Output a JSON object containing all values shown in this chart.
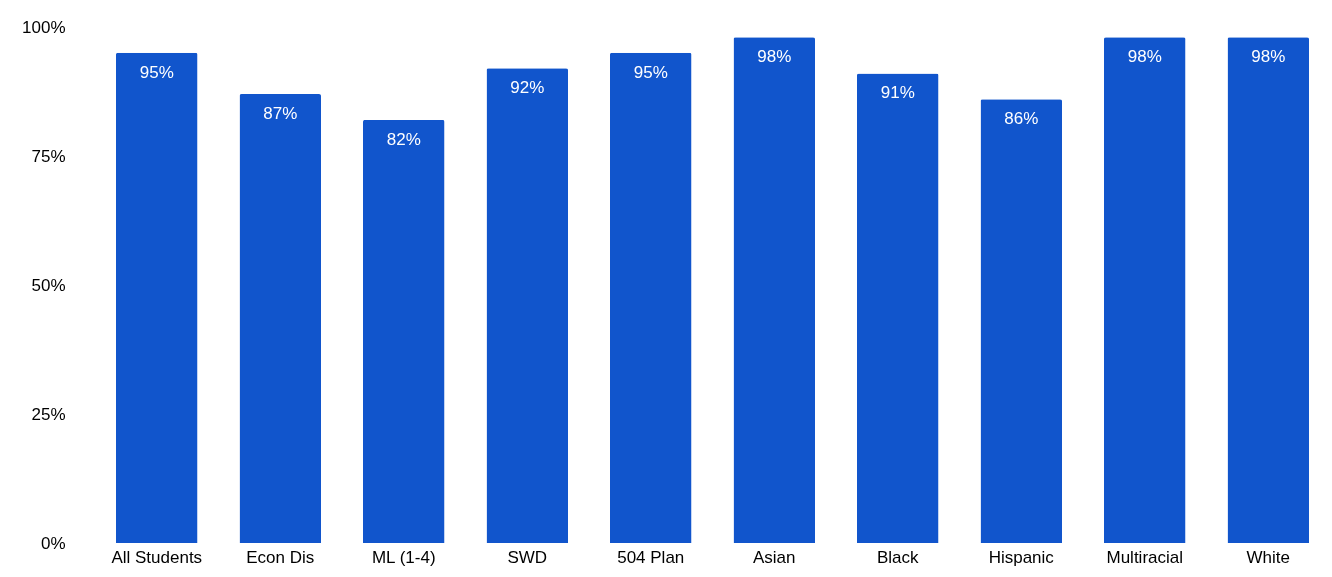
{
  "chart_data": {
    "type": "bar",
    "categories": [
      "All Students",
      "Econ Dis",
      "ML (1-4)",
      "SWD",
      "504 Plan",
      "Asian",
      "Black",
      "Hispanic",
      "Multiracial",
      "White"
    ],
    "values": [
      95,
      87,
      82,
      92,
      95,
      98,
      91,
      86,
      98,
      98
    ],
    "value_labels": [
      "95%",
      "87%",
      "82%",
      "92%",
      "95%",
      "98%",
      "91%",
      "86%",
      "98%",
      "98%"
    ],
    "color": "#1155cc",
    "ylim": [
      0,
      100
    ],
    "yticks": [
      {
        "value": 0,
        "label": "0%"
      },
      {
        "value": 25,
        "label": "25%"
      },
      {
        "value": 50,
        "label": "50%"
      },
      {
        "value": 75,
        "label": "75%"
      },
      {
        "value": 100,
        "label": "100%"
      }
    ],
    "grid": false
  }
}
